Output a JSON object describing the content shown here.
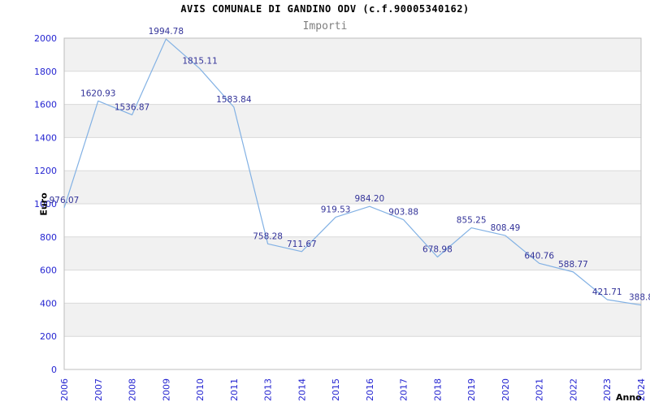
{
  "chart_data": {
    "type": "line",
    "title": "AVIS COMUNALE DI GANDINO ODV (c.f.90005340162)",
    "subtitle": "Importi",
    "xlabel": "Anno",
    "ylabel": "Euro",
    "categories": [
      "2006",
      "2007",
      "2008",
      "2009",
      "2010",
      "2011",
      "2013",
      "2014",
      "2015",
      "2016",
      "2017",
      "2018",
      "2019",
      "2020",
      "2021",
      "2022",
      "2023",
      "2024"
    ],
    "series": [
      {
        "name": "Importi",
        "values": [
          976.07,
          1620.93,
          1536.87,
          1994.78,
          1815.11,
          1583.84,
          758.28,
          711.67,
          919.53,
          984.2,
          903.88,
          678.98,
          855.25,
          808.49,
          640.76,
          588.77,
          421.71,
          388.8
        ],
        "point_labels": [
          "976.07",
          "1620.93",
          "1536.87",
          "1994.78",
          "1815.11",
          "1583.84",
          "758.28",
          "711.67",
          "919.53",
          "984.20",
          "903.88",
          "678.98",
          "855.25",
          "808.49",
          "640.76",
          "588.77",
          "421.71",
          "388.8"
        ]
      }
    ],
    "ylim": [
      0,
      2000
    ],
    "ytick_step": 200,
    "yticks": [
      "0",
      "200",
      "400",
      "600",
      "800",
      "1000",
      "1200",
      "1400",
      "1600",
      "1800",
      "2000"
    ],
    "grid": "horizontal",
    "bands": "alternating",
    "legend": "none",
    "colors": {
      "line": "#82b1e4",
      "data_label": "#333399",
      "tick_label": "#2525d1",
      "band_fill": "#f1f1f1",
      "grid_line": "#d9d9d9",
      "plot_border": "#bdbdbd",
      "title": "#000000",
      "subtitle": "#7f7f7f"
    }
  }
}
